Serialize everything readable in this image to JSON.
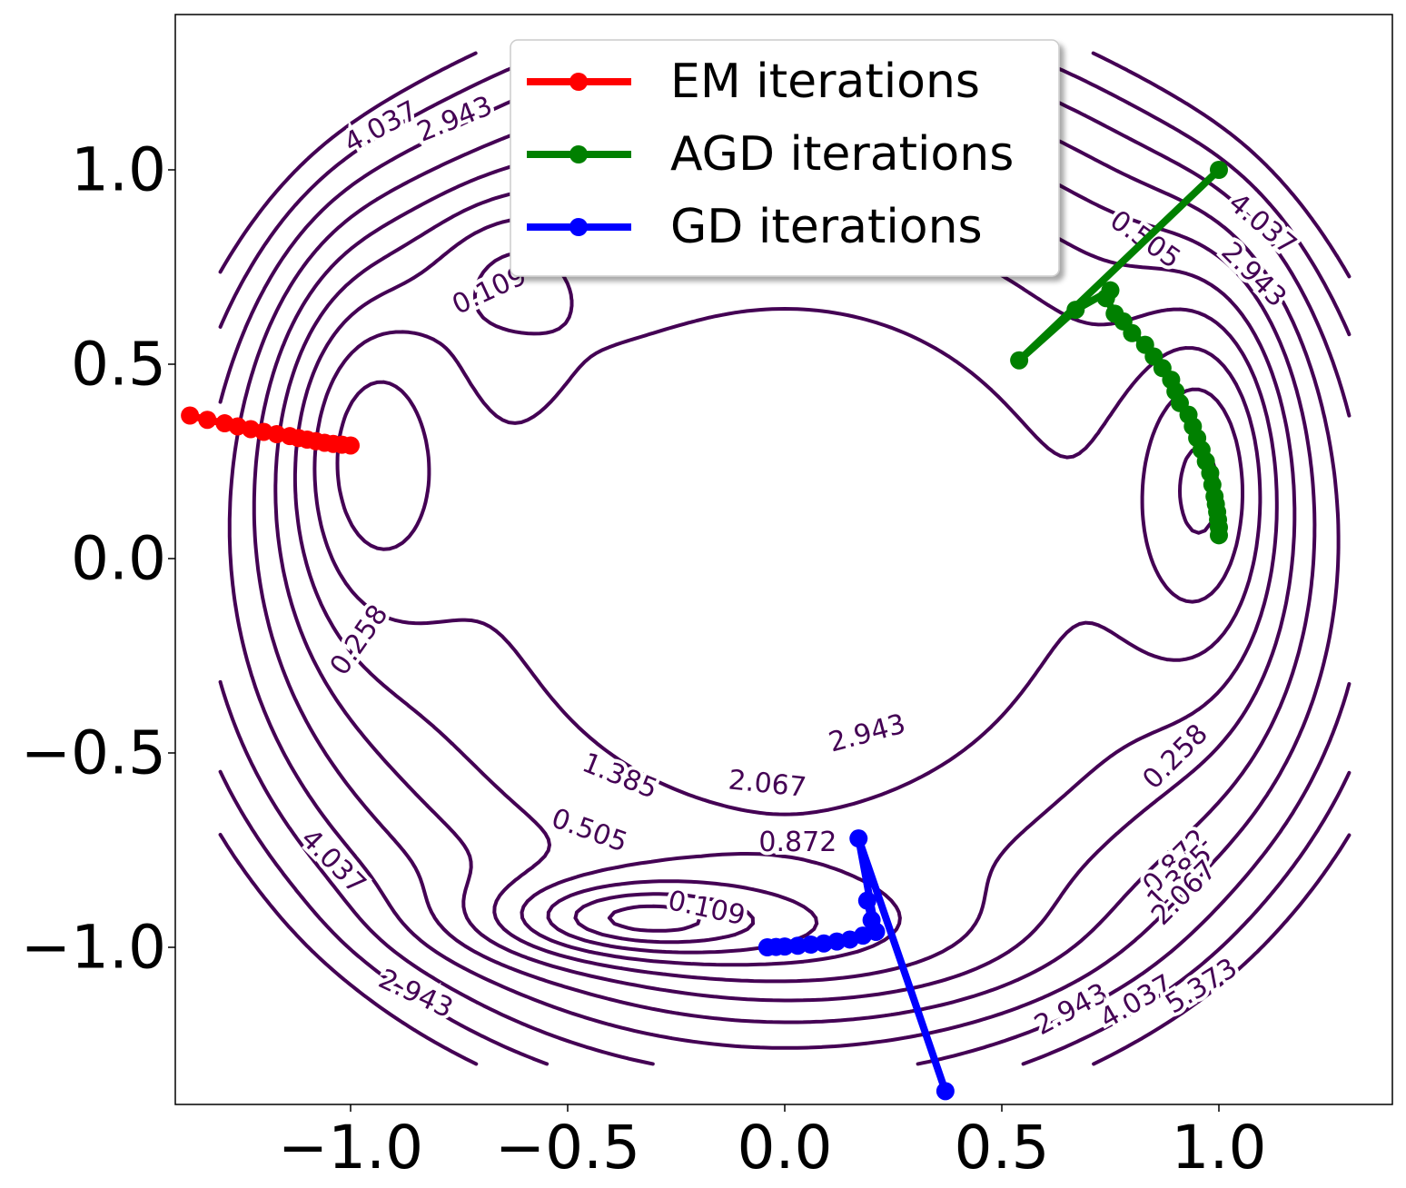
{
  "chart_data": {
    "type": "line",
    "title": "",
    "xlabel": "",
    "ylabel": "",
    "xlim": [
      -1.4,
      1.4
    ],
    "ylim": [
      -1.4,
      1.4
    ],
    "x_ticks": [
      -1.0,
      -0.5,
      0.0,
      0.5,
      1.0
    ],
    "x_tick_labels": [
      "−1.0",
      "−0.5",
      "0.0",
      "0.5",
      "1.0"
    ],
    "y_ticks": [
      1.0,
      0.5,
      0.0,
      -0.5,
      -1.0
    ],
    "y_tick_labels": [
      "1.0",
      "0.5",
      "0.0",
      "−0.5",
      "−1.0"
    ],
    "grid": false,
    "legend_position": "upper-center",
    "contour": {
      "color": "#440154",
      "levels": [
        0.109,
        0.258,
        0.505,
        0.872,
        1.385,
        2.067,
        2.943,
        4.037,
        5.373
      ],
      "labels": [
        {
          "text": "4.037",
          "x": -0.93,
          "y": 1.11,
          "angle": -28
        },
        {
          "text": "2.943",
          "x": -0.76,
          "y": 1.13,
          "angle": -22
        },
        {
          "text": "0.109",
          "x": -0.68,
          "y": 0.69,
          "angle": -25
        },
        {
          "text": "0.505",
          "x": 0.83,
          "y": 0.82,
          "angle": 35
        },
        {
          "text": "4.037",
          "x": 1.1,
          "y": 0.86,
          "angle": 40
        },
        {
          "text": "2.943",
          "x": 1.08,
          "y": 0.73,
          "angle": 45
        },
        {
          "text": "0.258",
          "x": -0.98,
          "y": -0.21,
          "angle": -55
        },
        {
          "text": "2.943",
          "x": 0.19,
          "y": -0.45,
          "angle": -15
        },
        {
          "text": "1.385",
          "x": -0.38,
          "y": -0.56,
          "angle": 22
        },
        {
          "text": "2.067",
          "x": -0.04,
          "y": -0.58,
          "angle": 6
        },
        {
          "text": "0.258",
          "x": 0.9,
          "y": -0.51,
          "angle": -45
        },
        {
          "text": "0.505",
          "x": -0.45,
          "y": -0.7,
          "angle": 20
        },
        {
          "text": "0.872",
          "x": 0.03,
          "y": -0.73,
          "angle": 0
        },
        {
          "text": "0.872",
          "x": 0.9,
          "y": -0.78,
          "angle": -45
        },
        {
          "text": "1.385",
          "x": 0.91,
          "y": -0.82,
          "angle": -45
        },
        {
          "text": "2.067",
          "x": 0.92,
          "y": -0.86,
          "angle": -45
        },
        {
          "text": "4.037",
          "x": -1.04,
          "y": -0.78,
          "angle": 45
        },
        {
          "text": "0.109",
          "x": -0.18,
          "y": -0.9,
          "angle": 12
        },
        {
          "text": "2.943",
          "x": -0.85,
          "y": -1.12,
          "angle": 25
        },
        {
          "text": "2.943",
          "x": 0.66,
          "y": -1.16,
          "angle": -28
        },
        {
          "text": "4.037",
          "x": 0.81,
          "y": -1.14,
          "angle": -30
        },
        {
          "text": "5.373",
          "x": 0.96,
          "y": -1.1,
          "angle": -32
        }
      ]
    },
    "series": [
      {
        "name": "EM iterations",
        "color": "#ff0000",
        "x": [
          -1.37,
          -1.33,
          -1.29,
          -1.26,
          -1.23,
          -1.2,
          -1.17,
          -1.14,
          -1.12,
          -1.1,
          -1.08,
          -1.06,
          -1.04,
          -1.02,
          -1.0
        ],
        "y": [
          0.368,
          0.357,
          0.348,
          0.34,
          0.333,
          0.326,
          0.32,
          0.315,
          0.31,
          0.306,
          0.302,
          0.298,
          0.295,
          0.293,
          0.291
        ]
      },
      {
        "name": "AGD iterations",
        "color": "#008000",
        "x": [
          1.0,
          0.54,
          0.67,
          0.75,
          0.74,
          0.76,
          0.78,
          0.8,
          0.83,
          0.85,
          0.87,
          0.89,
          0.9,
          0.91,
          0.93,
          0.94,
          0.95,
          0.96,
          0.97,
          0.98,
          0.985,
          0.99,
          0.993,
          0.996,
          0.998,
          1.0,
          1.0
        ],
        "y": [
          1.0,
          0.51,
          0.64,
          0.69,
          0.67,
          0.63,
          0.61,
          0.58,
          0.55,
          0.52,
          0.49,
          0.46,
          0.43,
          0.4,
          0.37,
          0.34,
          0.31,
          0.28,
          0.25,
          0.22,
          0.19,
          0.16,
          0.14,
          0.12,
          0.1,
          0.08,
          0.06
        ]
      },
      {
        "name": "GD iterations",
        "color": "#0000ff",
        "x": [
          0.37,
          0.17,
          0.21,
          0.19,
          0.2,
          0.21,
          0.18,
          0.15,
          0.12,
          0.09,
          0.06,
          0.03,
          0.0,
          -0.02,
          -0.04
        ],
        "y": [
          -1.37,
          -0.72,
          -0.96,
          -0.88,
          -0.93,
          -0.96,
          -0.97,
          -0.98,
          -0.985,
          -0.99,
          -0.993,
          -0.996,
          -0.998,
          -0.999,
          -1.0
        ]
      }
    ]
  }
}
